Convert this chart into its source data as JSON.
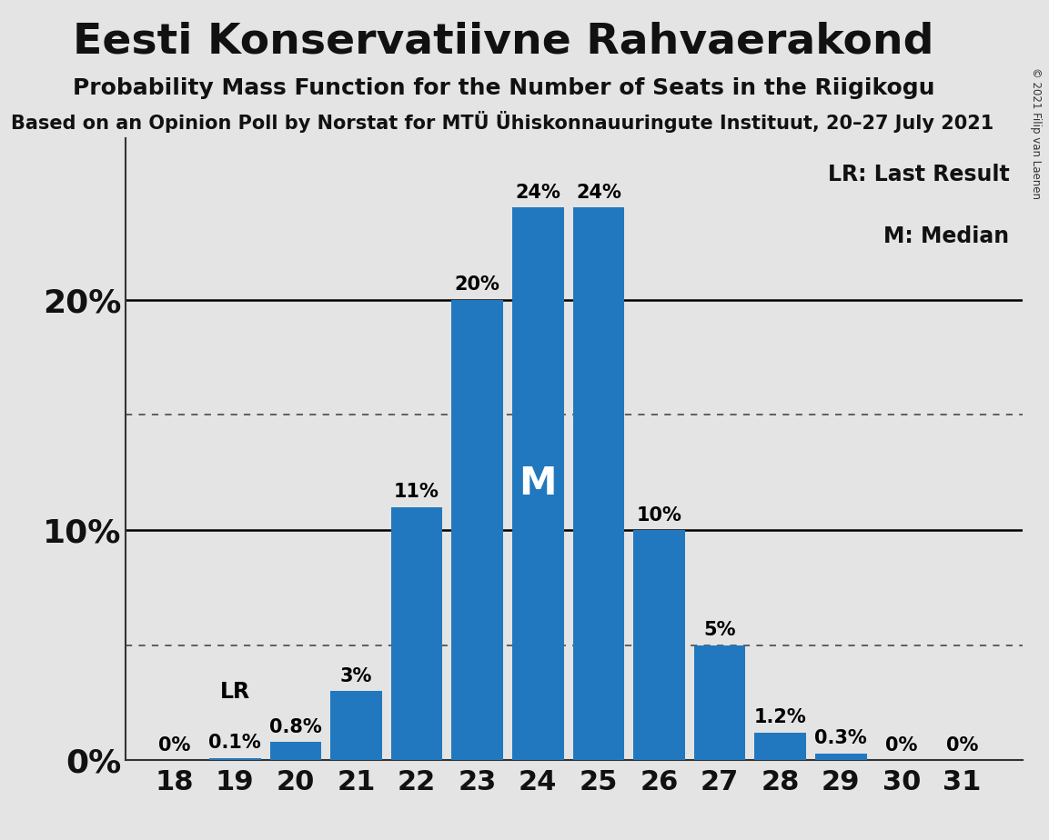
{
  "title": "Eesti Konservatiivne Rahvaerakond",
  "subtitle": "Probability Mass Function for the Number of Seats in the Riigikogu",
  "source_line": "Based on an Opinion Poll by Norstat for MTÜ Ühiskonnauuringute Instituut, 20–27 July 2021",
  "copyright": "© 2021 Filip van Laenen",
  "seats": [
    18,
    19,
    20,
    21,
    22,
    23,
    24,
    25,
    26,
    27,
    28,
    29,
    30,
    31
  ],
  "probabilities": [
    0.0,
    0.1,
    0.8,
    3.0,
    11.0,
    20.0,
    24.0,
    24.0,
    10.0,
    5.0,
    1.2,
    0.3,
    0.0,
    0.0
  ],
  "bar_color": "#2178BE",
  "background_color": "#E4E4E4",
  "median_seat": 24,
  "last_result_seat": 19,
  "legend_LR": "LR: Last Result",
  "legend_M": "M: Median",
  "median_label": "M",
  "LR_label": "LR",
  "ylim_max": 27,
  "dotted_lines": [
    5.0,
    15.0
  ],
  "solid_lines": [
    10.0,
    20.0
  ],
  "title_fontsize": 34,
  "subtitle_fontsize": 18,
  "source_fontsize": 15,
  "bar_label_fontsize": 15,
  "axis_tick_fontsize": 22,
  "ytick_fontsize": 26,
  "legend_fontsize": 17,
  "median_label_fontsize": 30
}
